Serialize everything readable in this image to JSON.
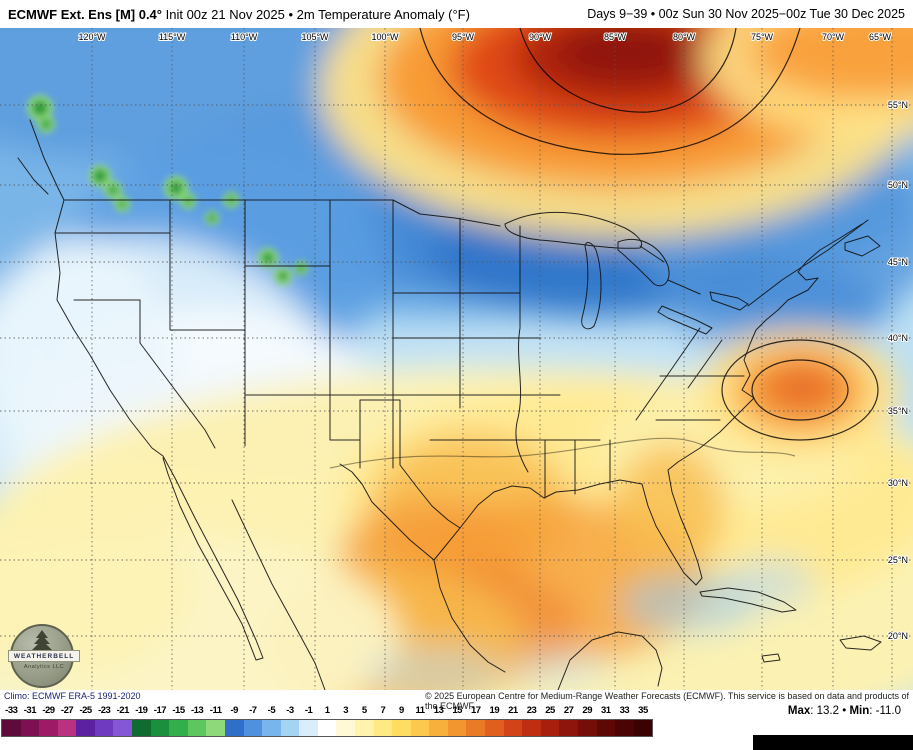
{
  "header": {
    "title_bold": "ECMWF Ext.  Ens [M] 0.4°",
    "title_rest": " Init 00z 21 Nov 2025 • 2m Temperature Anomaly (°F)",
    "range": "Days 9−39 • 00z Sun 30 Nov 2025−00z Tue 30 Dec 2025"
  },
  "map": {
    "lon_labels": [
      "120°W",
      "115°W",
      "110°W",
      "105°W",
      "100°W",
      "95°W",
      "90°W",
      "85°W",
      "80°W",
      "75°W",
      "70°W",
      "65°W"
    ],
    "lat_labels": [
      "55°N",
      "50°N",
      "45°N",
      "40°N",
      "35°N",
      "30°N",
      "25°N",
      "20°N"
    ],
    "logo": {
      "line1": "WEATHERBELL",
      "line2": "Analytics LLC"
    }
  },
  "attribution": {
    "climo": "Climo: ECMWF ERA-5 1991-2020",
    "copyright": "© 2025 European Centre for Medium-Range Weather Forecasts (ECMWF). This service is based on data and products of the ECMWF."
  },
  "stats": {
    "max_label": "Max",
    "max_value": ": 13.2",
    "sep": " • ",
    "min_label": "Min",
    "min_value": ": -11.0"
  },
  "colorbar": {
    "ticks": [
      "-33",
      "-31",
      "-29",
      "-27",
      "-25",
      "-23",
      "-21",
      "-19",
      "-17",
      "-15",
      "-13",
      "-11",
      "-9",
      "-7",
      "-5",
      "-3",
      "-1",
      "1",
      "3",
      "5",
      "7",
      "9",
      "11",
      "13",
      "15",
      "17",
      "19",
      "21",
      "23",
      "25",
      "27",
      "29",
      "31",
      "33",
      "35"
    ],
    "colors": [
      "#5e0b3c",
      "#7d1050",
      "#9c1a66",
      "#b8327f",
      "#5b21a0",
      "#6f3ac0",
      "#8457d6",
      "#0f6b2f",
      "#1c8f3e",
      "#33ae4c",
      "#5cc75e",
      "#8eda7a",
      "#2f6fc8",
      "#4f91dc",
      "#79b5ea",
      "#a6d3f2",
      "#d9edfa",
      "#ffffff",
      "#fff9d6",
      "#fff3ae",
      "#ffe985",
      "#ffdc62",
      "#fcc84d",
      "#f7b03c",
      "#f2962f",
      "#ea7b26",
      "#e05f1f",
      "#d24418",
      "#c02e12",
      "#a81f0e",
      "#8e150b",
      "#750d08",
      "#5e0806",
      "#4a0404",
      "#3a0202"
    ]
  },
  "chart_data": {
    "type": "heatmap",
    "title": "ECMWF Ext. Ens [M] 0.4° 2m Temperature Anomaly (°F), Days 9−39",
    "units": "°F",
    "scale_ticks": [
      -33,
      -31,
      -29,
      -27,
      -25,
      -23,
      -21,
      -19,
      -17,
      -15,
      -13,
      -11,
      -9,
      -7,
      -5,
      -3,
      -1,
      1,
      3,
      5,
      7,
      9,
      11,
      13,
      15,
      17,
      19,
      21,
      23,
      25,
      27,
      29,
      31,
      33,
      35
    ],
    "max": 13.2,
    "min": -11.0,
    "legend_position": "bottom",
    "notes": "Cold (blue/green/purple) anomalies over western and northern CONUS and southern Canada; strong warm (red) anomaly over Hudson Bay / eastern Canada; warm (yellow/orange) anomalies over southern tier, Gulf of Mexico, Mexico and western Atlantic."
  }
}
